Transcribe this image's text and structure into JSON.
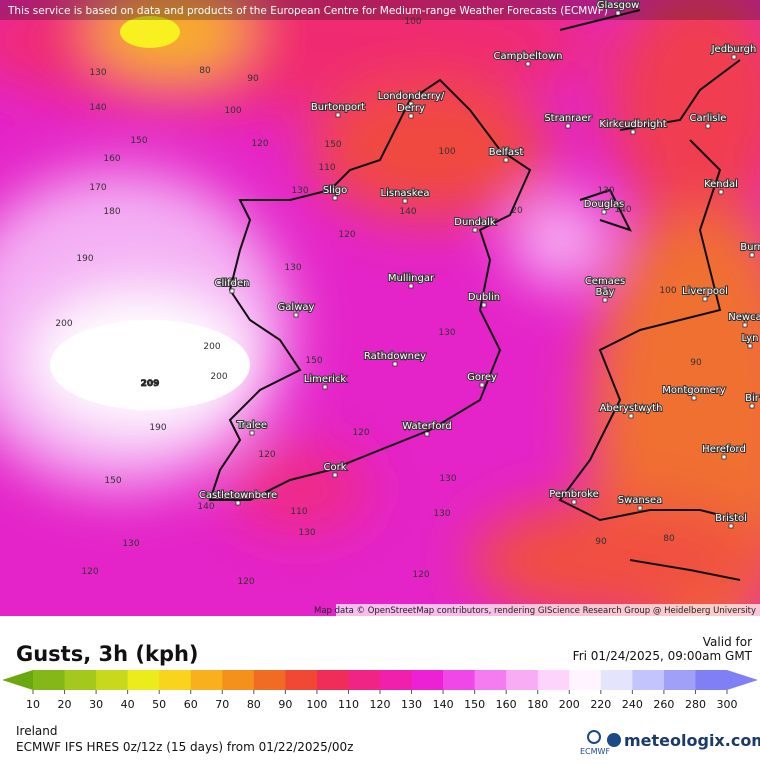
{
  "banner": "This service is based on data and products of the European Centre for Medium-range Weather Forecasts (ECMWF)",
  "attribution": "Map data © OpenStreetMap contributors, rendering GIScience Research Group @ Heidelberg University",
  "places": [
    "Glasgow",
    "Campbeltown",
    "Jedburgh",
    "Burtonport",
    "Londonderry/",
    "Derry",
    "Stranraer",
    "Kirkcudbright",
    "Carlisle",
    "Belfast",
    "Sligo",
    "Lisnaskea",
    "Kendal",
    "Douglas",
    "Dundalk",
    "Burn",
    "Clifden",
    "Mullingar",
    "Cemaes",
    "Bay",
    "Liverpool",
    "Galway",
    "Dublin",
    "Newca",
    "Lyn",
    "Rathdowney",
    "Limerick",
    "Gorey",
    "Montgomery",
    "Bir",
    "Aberystwyth",
    "Tralee",
    "Waterford",
    "Hereford",
    "Cork",
    "Pembroke",
    "Swansea",
    "Castletownbere",
    "Bristol"
  ],
  "contours": [
    130,
    80,
    90,
    140,
    100,
    150,
    120,
    150,
    160,
    100,
    170,
    130,
    110,
    180,
    140,
    20,
    120,
    190,
    130,
    130,
    140,
    100,
    200,
    200,
    200,
    209,
    150,
    130,
    190,
    120,
    120,
    90,
    150,
    140,
    110,
    130,
    130,
    130,
    130,
    90,
    80,
    120,
    120,
    120,
    100
  ],
  "legend": {
    "title": "Gusts, 3h (kph)",
    "valid_label": "Valid for",
    "valid_time": "Fri 01/24/2025, 09:00am GMT",
    "scale": [
      {
        "value": 10,
        "color": "#6aa80e"
      },
      {
        "value": 20,
        "color": "#84b818"
      },
      {
        "value": 30,
        "color": "#a4c81c"
      },
      {
        "value": 40,
        "color": "#c8d81c"
      },
      {
        "value": 50,
        "color": "#ecec1c"
      },
      {
        "value": 60,
        "color": "#f8d41c"
      },
      {
        "value": 70,
        "color": "#f8b01c"
      },
      {
        "value": 80,
        "color": "#f4901c"
      },
      {
        "value": 90,
        "color": "#f06c24"
      },
      {
        "value": 100,
        "color": "#f04834"
      },
      {
        "value": 110,
        "color": "#f02c58"
      },
      {
        "value": 120,
        "color": "#f02484"
      },
      {
        "value": 130,
        "color": "#f020ac"
      },
      {
        "value": 140,
        "color": "#ec20d4"
      },
      {
        "value": 150,
        "color": "#f048e8"
      },
      {
        "value": 160,
        "color": "#f47cf0"
      },
      {
        "value": 180,
        "color": "#f8acf4"
      },
      {
        "value": 200,
        "color": "#fcd4fc"
      },
      {
        "value": 220,
        "color": "#fff4ff"
      },
      {
        "value": 240,
        "color": "#e4e4fc"
      },
      {
        "value": 260,
        "color": "#c4c4fc"
      },
      {
        "value": 280,
        "color": "#a0a0f8"
      },
      {
        "value": 300,
        "color": "#8080f4"
      }
    ]
  },
  "footer": {
    "region": "Ireland",
    "model": "ECMWF IFS HRES 0z/12z (15 days) from 01/22/2025/00z",
    "ecmwf": "ECMWF",
    "brand": "meteologix.com"
  }
}
